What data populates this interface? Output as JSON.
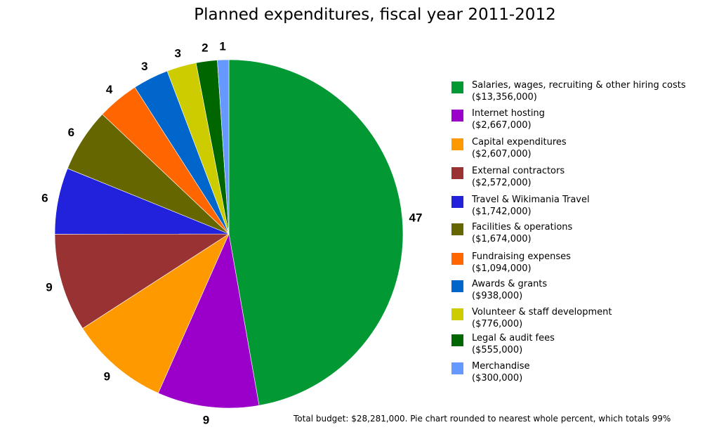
{
  "chart_data": {
    "type": "pie",
    "title": "Planned expenditures, fiscal year 2011-2012",
    "slices": [
      {
        "name": "Salaries, wages, recruiting & other hiring costs",
        "amount_label": "($13,356,000)",
        "amount": 13356000,
        "percent_label": "47",
        "color": "#029833"
      },
      {
        "name": "Internet hosting",
        "amount_label": "($2,667,000)",
        "amount": 2667000,
        "percent_label": "9",
        "color": "#9a00c9"
      },
      {
        "name": "Capital expenditures",
        "amount_label": "($2,607,000)",
        "amount": 2607000,
        "percent_label": "9",
        "color": "#ff9900"
      },
      {
        "name": "External contractors",
        "amount_label": "($2,572,000)",
        "amount": 2572000,
        "percent_label": "9",
        "color": "#993333"
      },
      {
        "name": "Travel & Wikimania Travel",
        "amount_label": "($1,742,000)",
        "amount": 1742000,
        "percent_label": "6",
        "color": "#2222dd"
      },
      {
        "name": "Facilities & operations",
        "amount_label": "($1,674,000)",
        "amount": 1674000,
        "percent_label": "6",
        "color": "#666600"
      },
      {
        "name": "Fundraising expenses",
        "amount_label": "($1,094,000)",
        "amount": 1094000,
        "percent_label": "4",
        "color": "#ff6600"
      },
      {
        "name": "Awards & grants",
        "amount_label": "($938,000)",
        "amount": 938000,
        "percent_label": "3",
        "color": "#0066cc"
      },
      {
        "name": "Volunteer & staff development",
        "amount_label": "($776,000)",
        "amount": 776000,
        "percent_label": "3",
        "color": "#cccc00"
      },
      {
        "name": "Legal & audit fees",
        "amount_label": "($555,000)",
        "amount": 555000,
        "percent_label": "2",
        "color": "#006600"
      },
      {
        "name": "Merchandise",
        "amount_label": "($300,000)",
        "amount": 300000,
        "percent_label": "1",
        "color": "#6699ff"
      }
    ],
    "legend_position": "right",
    "footnote": "Total budget: $28,281,000. Pie chart rounded to nearest whole percent, which totals 99%"
  }
}
